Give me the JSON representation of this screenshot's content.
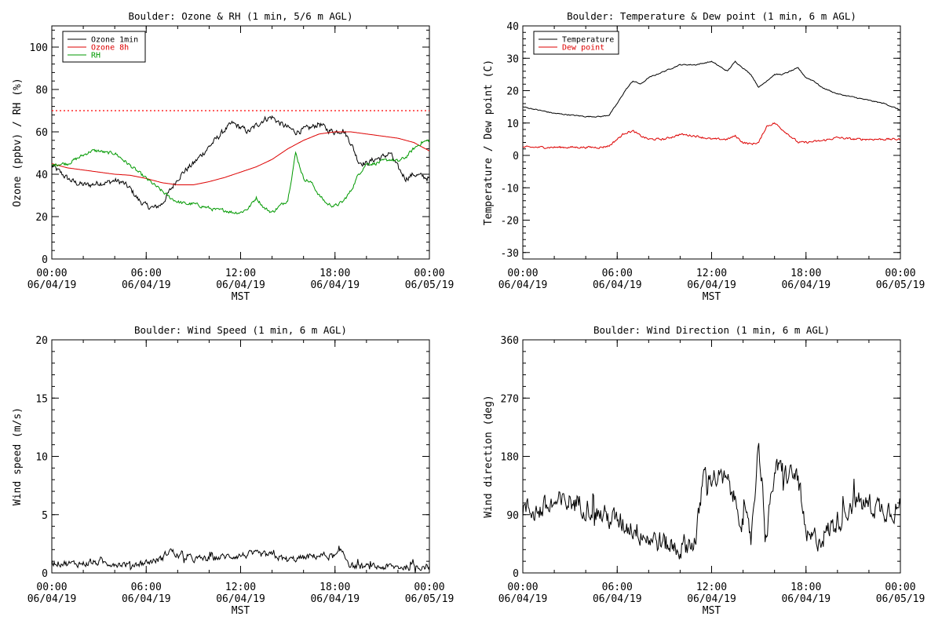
{
  "chart_data": [
    {
      "type": "line",
      "title": "Boulder: Ozone & RH (1 min, 5/6 m AGL)",
      "xlabel": "MST",
      "ylabel": "Ozone (ppbv) / RH (%)",
      "ylim": [
        0,
        110
      ],
      "yticks": [
        0,
        20,
        40,
        60,
        80,
        100
      ],
      "xlim": [
        0,
        24
      ],
      "xticks": [
        {
          "v": 0,
          "l1": "00:00",
          "l2": "06/04/19"
        },
        {
          "v": 6,
          "l1": "06:00",
          "l2": "06/04/19"
        },
        {
          "v": 12,
          "l1": "12:00",
          "l2": "06/04/19"
        },
        {
          "v": 18,
          "l1": "18:00",
          "l2": "06/04/19"
        },
        {
          "v": 24,
          "l1": "00:00",
          "l2": "06/05/19"
        }
      ],
      "reference_line": {
        "y": 70,
        "color": "#ff0000",
        "style": "dotted"
      },
      "legend": "top-left",
      "series": [
        {
          "name": "Ozone 1min",
          "color": "#000000",
          "noise": 2.2,
          "x": [
            0,
            0.5,
            1,
            1.5,
            2,
            2.5,
            3,
            3.5,
            4,
            4.5,
            5,
            5.5,
            6,
            6.5,
            7,
            7.5,
            8,
            8.5,
            9,
            9.5,
            10,
            10.5,
            11,
            11.5,
            12,
            12.5,
            13,
            13.5,
            14,
            14.5,
            15,
            15.5,
            16,
            16.5,
            17,
            17.5,
            18,
            18.5,
            19,
            19.5,
            20,
            20.5,
            21,
            21.5,
            22,
            22.5,
            23,
            23.5,
            24
          ],
          "y": [
            44,
            41,
            38,
            36,
            35,
            35,
            36,
            36,
            37,
            36,
            33,
            28,
            25,
            24,
            26,
            32,
            38,
            42,
            45,
            49,
            53,
            57,
            61,
            64,
            62,
            60,
            63,
            66,
            67,
            64,
            62,
            60,
            61,
            62,
            64,
            61,
            60,
            61,
            55,
            46,
            45,
            47,
            48,
            50,
            43,
            38,
            40,
            39,
            38
          ]
        },
        {
          "name": "Ozone 8h",
          "color": "#dd0000",
          "noise": 0,
          "x": [
            0,
            1,
            2,
            3,
            4,
            5,
            6,
            7,
            8,
            9,
            10,
            11,
            12,
            13,
            14,
            15,
            16,
            17,
            18,
            19,
            20,
            21,
            22,
            23,
            24
          ],
          "y": [
            45,
            43,
            42,
            41,
            40,
            39.5,
            38,
            36,
            35,
            35,
            36.5,
            38.5,
            41,
            43.5,
            47,
            52,
            56,
            59,
            60,
            60,
            59,
            58,
            57,
            55,
            51
          ]
        },
        {
          "name": "RH",
          "color": "#009900",
          "noise": 1.3,
          "x": [
            0,
            0.5,
            1,
            1.5,
            2,
            2.5,
            3,
            3.5,
            4,
            4.5,
            5,
            5.5,
            6,
            6.5,
            7,
            7.5,
            8,
            8.5,
            9,
            9.5,
            10,
            10.5,
            11,
            11.5,
            12,
            12.5,
            13,
            13.5,
            14,
            14.5,
            15,
            15.5,
            16,
            16.5,
            17,
            17.5,
            18,
            18.5,
            19,
            19.5,
            20,
            20.5,
            21,
            21.5,
            22,
            22.5,
            23,
            23.5,
            24
          ],
          "y": [
            44,
            45,
            45,
            47,
            49,
            51,
            51,
            50,
            50,
            47,
            44,
            41,
            38,
            35,
            32,
            29,
            27,
            26,
            26,
            25,
            24,
            23,
            23,
            22,
            22,
            24,
            29,
            24,
            22,
            25,
            28,
            50,
            38,
            36,
            30,
            26,
            25,
            27,
            32,
            40,
            45,
            45,
            46,
            47,
            46,
            48,
            52,
            55,
            56
          ]
        }
      ]
    },
    {
      "type": "line",
      "title": "Boulder: Temperature & Dew point (1 min, 6 m AGL)",
      "xlabel": "MST",
      "ylabel": "Temperature / Dew point (C)",
      "ylim": [
        -32,
        40
      ],
      "yticks": [
        -30,
        -20,
        -10,
        0,
        10,
        20,
        30,
        40
      ],
      "xlim": [
        0,
        24
      ],
      "xticks": [
        {
          "v": 0,
          "l1": "00:00",
          "l2": "06/04/19"
        },
        {
          "v": 6,
          "l1": "06:00",
          "l2": "06/04/19"
        },
        {
          "v": 12,
          "l1": "12:00",
          "l2": "06/04/19"
        },
        {
          "v": 18,
          "l1": "18:00",
          "l2": "06/04/19"
        },
        {
          "v": 24,
          "l1": "00:00",
          "l2": "06/05/19"
        }
      ],
      "legend": "top-left",
      "series": [
        {
          "name": "Temperature",
          "color": "#000000",
          "noise": 0.25,
          "x": [
            0,
            1,
            2,
            3,
            4,
            5,
            5.5,
            6,
            6.5,
            7,
            7.5,
            8,
            8.5,
            9,
            9.5,
            10,
            11,
            12,
            13,
            13.5,
            14,
            14.5,
            15,
            15.5,
            16,
            16.5,
            17,
            17.5,
            18,
            18.5,
            19,
            20,
            21,
            22,
            23,
            24
          ],
          "y": [
            15,
            14,
            13,
            12.5,
            12,
            12,
            12.5,
            16,
            20,
            23,
            22,
            24,
            25,
            26,
            27,
            28,
            28,
            29,
            26,
            29,
            27,
            25,
            21,
            23,
            25,
            25,
            26,
            27,
            24,
            23,
            21,
            19,
            18,
            17,
            16,
            14
          ]
        },
        {
          "name": "Dew point",
          "color": "#dd0000",
          "noise": 0.5,
          "x": [
            0,
            1,
            2,
            3,
            4,
            5,
            5.5,
            6,
            6.5,
            7,
            7.5,
            8,
            9,
            10,
            11,
            12,
            13,
            13.5,
            14,
            14.5,
            15,
            15.5,
            16,
            16.5,
            17,
            17.5,
            18,
            19,
            20,
            21,
            22,
            23,
            24
          ],
          "y": [
            2.5,
            2.5,
            2.5,
            2.5,
            2.5,
            2.5,
            3,
            5,
            7,
            7.5,
            6,
            5,
            5,
            6.5,
            6,
            5,
            5,
            6,
            4,
            3.5,
            4,
            9,
            10,
            8,
            6,
            4,
            4,
            4.5,
            5.5,
            5,
            5,
            5,
            5
          ]
        }
      ]
    },
    {
      "type": "line",
      "title": "Boulder: Wind Speed (1 min, 6 m AGL)",
      "xlabel": "MST",
      "ylabel": "Wind speed (m/s)",
      "ylim": [
        0,
        20
      ],
      "yticks": [
        0,
        5,
        10,
        15,
        20
      ],
      "xlim": [
        0,
        24
      ],
      "xticks": [
        {
          "v": 0,
          "l1": "00:00",
          "l2": "06/04/19"
        },
        {
          "v": 6,
          "l1": "06:00",
          "l2": "06/04/19"
        },
        {
          "v": 12,
          "l1": "12:00",
          "l2": "06/04/19"
        },
        {
          "v": 18,
          "l1": "18:00",
          "l2": "06/04/19"
        },
        {
          "v": 24,
          "l1": "00:00",
          "l2": "06/05/19"
        }
      ],
      "series": [
        {
          "color": "#000000",
          "noise": 0.45,
          "spiky": true,
          "x": [
            0,
            1,
            2,
            3,
            4,
            5,
            6,
            7,
            7.5,
            8,
            9,
            10,
            11,
            12,
            13,
            14,
            15,
            16,
            17,
            18,
            18.5,
            19,
            20,
            21,
            22,
            23,
            24
          ],
          "y": [
            0.9,
            0.8,
            0.8,
            0.9,
            0.8,
            0.7,
            0.9,
            1.2,
            2.0,
            1.5,
            1.2,
            1.2,
            1.4,
            1.5,
            1.6,
            1.5,
            1.1,
            1.3,
            1.5,
            1.4,
            1.8,
            0.6,
            0.5,
            0.5,
            0.5,
            0.5,
            0.6
          ]
        }
      ]
    },
    {
      "type": "line",
      "title": "Boulder: Wind Direction (1 min, 6 m AGL)",
      "xlabel": "MST",
      "ylabel": "Wind direction (deg)",
      "ylim": [
        0,
        360
      ],
      "yticks": [
        0,
        90,
        180,
        270,
        360
      ],
      "xlim": [
        0,
        24
      ],
      "xticks": [
        {
          "v": 0,
          "l1": "00:00",
          "l2": "06/04/19"
        },
        {
          "v": 6,
          "l1": "06:00",
          "l2": "06/04/19"
        },
        {
          "v": 12,
          "l1": "12:00",
          "l2": "06/04/19"
        },
        {
          "v": 18,
          "l1": "18:00",
          "l2": "06/04/19"
        },
        {
          "v": 24,
          "l1": "00:00",
          "l2": "06/05/19"
        }
      ],
      "series": [
        {
          "color": "#000000",
          "noise": 28,
          "spiky": true,
          "x": [
            0,
            1,
            2,
            3,
            4,
            5,
            6,
            7,
            8,
            9,
            10,
            11,
            11.5,
            12,
            13,
            14,
            14.5,
            15,
            15.5,
            16,
            17,
            17.5,
            18,
            19,
            20,
            21,
            22,
            23,
            24
          ],
          "y": [
            100,
            95,
            105,
            110,
            105,
            90,
            80,
            70,
            55,
            45,
            40,
            50,
            150,
            150,
            140,
            80,
            60,
            200,
            55,
            160,
            150,
            150,
            50,
            55,
            80,
            110,
            105,
            100,
            100
          ]
        }
      ]
    }
  ]
}
